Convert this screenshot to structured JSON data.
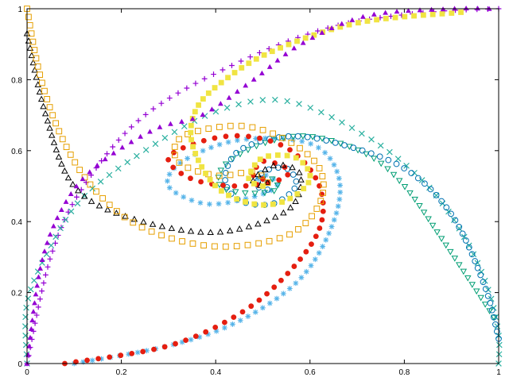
{
  "chart_data": {
    "type": "scatter",
    "title": "",
    "xlabel": "",
    "ylabel": "",
    "xlim": [
      0,
      1
    ],
    "ylim": [
      0,
      1
    ],
    "grid": false,
    "legend": "none",
    "x_ticks": [
      {
        "value": 0,
        "label": "0"
      },
      {
        "value": 0.2,
        "label": "0.2"
      },
      {
        "value": 0.4,
        "label": "0.4"
      },
      {
        "value": 0.6,
        "label": "0.6"
      },
      {
        "value": 0.8,
        "label": "0.8"
      },
      {
        "value": 1,
        "label": "1"
      }
    ],
    "y_ticks": [
      {
        "value": 0,
        "label": "0"
      },
      {
        "value": 0.2,
        "label": "0.2"
      },
      {
        "value": 0.4,
        "label": "0.4"
      },
      {
        "value": 0.6,
        "label": "0.6"
      },
      {
        "value": 0.8,
        "label": "0.8"
      },
      {
        "value": 1,
        "label": "1"
      }
    ],
    "series": [
      {
        "marker": "plus",
        "color": "#9400d3",
        "start": [
          0.0,
          0.0
        ],
        "points": 70,
        "anchors": [
          [
            0,
            0
          ],
          [
            0.05,
            0.3
          ],
          [
            0.12,
            0.5
          ],
          [
            0.25,
            0.7
          ],
          [
            0.45,
            0.85
          ],
          [
            0.65,
            0.95
          ],
          [
            0.85,
            0.99
          ],
          [
            1.0,
            1.0
          ]
        ]
      },
      {
        "marker": "cross",
        "color": "#2bb0a0",
        "points": 75,
        "anchors": [
          [
            1.0,
            0.0
          ],
          [
            1.0,
            0.08
          ],
          [
            0.98,
            0.2
          ],
          [
            0.93,
            0.35
          ],
          [
            0.85,
            0.5
          ],
          [
            0.72,
            0.64
          ],
          [
            0.55,
            0.74
          ],
          [
            0.4,
            0.71
          ],
          [
            0.25,
            0.6
          ],
          [
            0.12,
            0.47
          ],
          [
            0.05,
            0.33
          ],
          [
            0.0,
            0.17
          ],
          [
            0.0,
            0.0
          ]
        ]
      },
      {
        "marker": "star",
        "color": "#56b4e9",
        "points": 85,
        "anchors": [
          [
            0.1,
            0.0
          ],
          [
            0.3,
            0.05
          ],
          [
            0.45,
            0.12
          ],
          [
            0.58,
            0.24
          ],
          [
            0.65,
            0.4
          ],
          [
            0.66,
            0.53
          ],
          [
            0.6,
            0.62
          ],
          [
            0.45,
            0.63
          ],
          [
            0.33,
            0.57
          ],
          [
            0.3,
            0.5
          ],
          [
            0.38,
            0.45
          ],
          [
            0.48,
            0.47
          ],
          [
            0.53,
            0.5
          ],
          [
            0.51,
            0.53
          ],
          [
            0.49,
            0.52
          ]
        ]
      },
      {
        "marker": "triangle-down-open",
        "color": "#009e73",
        "points": 55,
        "anchors": [
          [
            0.99,
            0.13
          ],
          [
            0.88,
            0.35
          ],
          [
            0.8,
            0.5
          ],
          [
            0.72,
            0.59
          ],
          [
            0.6,
            0.64
          ],
          [
            0.5,
            0.62
          ],
          [
            0.42,
            0.56
          ],
          [
            0.41,
            0.5
          ],
          [
            0.47,
            0.48
          ],
          [
            0.53,
            0.49
          ],
          [
            0.52,
            0.52
          ],
          [
            0.5,
            0.52
          ]
        ]
      },
      {
        "marker": "circle-open",
        "color": "#0072b2",
        "points": 70,
        "anchors": [
          [
            1.0,
            0.07
          ],
          [
            0.97,
            0.22
          ],
          [
            0.9,
            0.42
          ],
          [
            0.8,
            0.55
          ],
          [
            0.66,
            0.62
          ],
          [
            0.55,
            0.64
          ],
          [
            0.45,
            0.6
          ],
          [
            0.42,
            0.52
          ],
          [
            0.45,
            0.46
          ],
          [
            0.52,
            0.45
          ],
          [
            0.57,
            0.5
          ],
          [
            0.55,
            0.55
          ],
          [
            0.5,
            0.54
          ],
          [
            0.49,
            0.5
          ],
          [
            0.51,
            0.49
          ],
          [
            0.51,
            0.51
          ]
        ]
      },
      {
        "marker": "circle",
        "color": "#e51e10",
        "points": 70,
        "anchors": [
          [
            0.08,
            0.0
          ],
          [
            0.3,
            0.05
          ],
          [
            0.45,
            0.14
          ],
          [
            0.55,
            0.25
          ],
          [
            0.62,
            0.38
          ],
          [
            0.62,
            0.5
          ],
          [
            0.56,
            0.6
          ],
          [
            0.47,
            0.64
          ],
          [
            0.38,
            0.63
          ],
          [
            0.3,
            0.58
          ],
          [
            0.35,
            0.52
          ],
          [
            0.45,
            0.5
          ],
          [
            0.54,
            0.52
          ],
          [
            0.55,
            0.55
          ],
          [
            0.5,
            0.57
          ],
          [
            0.48,
            0.53
          ],
          [
            0.5,
            0.52
          ]
        ]
      },
      {
        "marker": "triangle-open",
        "color": "#000000",
        "points": 60,
        "anchors": [
          [
            0.0,
            0.93
          ],
          [
            0.04,
            0.7
          ],
          [
            0.1,
            0.5
          ],
          [
            0.22,
            0.41
          ],
          [
            0.4,
            0.37
          ],
          [
            0.55,
            0.43
          ],
          [
            0.58,
            0.53
          ],
          [
            0.53,
            0.56
          ],
          [
            0.48,
            0.52
          ],
          [
            0.5,
            0.5
          ],
          [
            0.51,
            0.51
          ]
        ]
      },
      {
        "marker": "square-open",
        "color": "#e69f00",
        "points": 80,
        "anchors": [
          [
            0.0,
            1.0
          ],
          [
            0.03,
            0.8
          ],
          [
            0.08,
            0.62
          ],
          [
            0.15,
            0.48
          ],
          [
            0.25,
            0.38
          ],
          [
            0.4,
            0.33
          ],
          [
            0.55,
            0.36
          ],
          [
            0.62,
            0.45
          ],
          [
            0.62,
            0.55
          ],
          [
            0.55,
            0.63
          ],
          [
            0.45,
            0.67
          ],
          [
            0.33,
            0.64
          ],
          [
            0.32,
            0.57
          ],
          [
            0.4,
            0.53
          ],
          [
            0.48,
            0.54
          ],
          [
            0.51,
            0.51
          ]
        ]
      },
      {
        "marker": "square",
        "color": "#f0e442",
        "points": 70,
        "anchors": [
          [
            0.92,
            0.99
          ],
          [
            0.7,
            0.96
          ],
          [
            0.52,
            0.88
          ],
          [
            0.42,
            0.8
          ],
          [
            0.36,
            0.72
          ],
          [
            0.35,
            0.62
          ],
          [
            0.4,
            0.5
          ],
          [
            0.48,
            0.45
          ],
          [
            0.55,
            0.46
          ],
          [
            0.6,
            0.52
          ],
          [
            0.57,
            0.58
          ],
          [
            0.5,
            0.58
          ],
          [
            0.47,
            0.52
          ],
          [
            0.5,
            0.5
          ]
        ]
      },
      {
        "marker": "triangle",
        "color": "#9400d3",
        "points": 65,
        "anchors": [
          [
            0.0,
            0.0
          ],
          [
            0.03,
            0.28
          ],
          [
            0.08,
            0.45
          ],
          [
            0.15,
            0.56
          ],
          [
            0.27,
            0.66
          ],
          [
            0.37,
            0.7
          ],
          [
            0.48,
            0.8
          ],
          [
            0.58,
            0.9
          ],
          [
            0.72,
            0.98
          ],
          [
            0.9,
            1.0
          ],
          [
            0.98,
            1.0
          ]
        ]
      }
    ]
  }
}
